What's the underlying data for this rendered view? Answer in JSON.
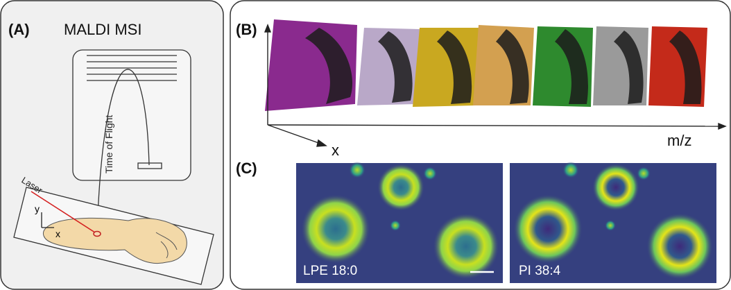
{
  "panel_a": {
    "label": "(A)",
    "title": "MALDI MSI",
    "tof_label": "Time of Flight",
    "laser_label": "Laser",
    "y_axis": "y",
    "x_axis": "x"
  },
  "panel_b": {
    "label": "(B)",
    "mz_axis": "m/z",
    "x_axis": "x"
  },
  "panel_c": {
    "label": "(C)",
    "images": [
      "LPE 18:0",
      "PI 38:4"
    ]
  }
}
